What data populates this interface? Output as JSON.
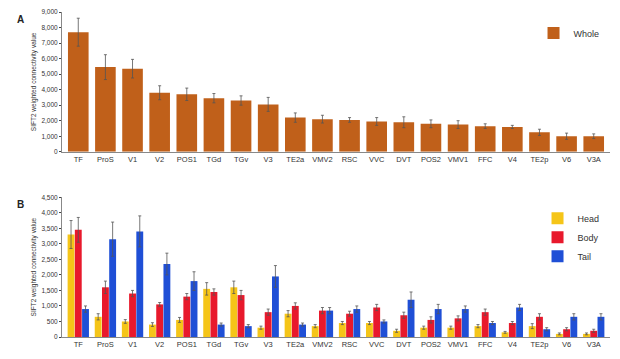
{
  "chart_data": [
    {
      "type": "bar",
      "title": "A",
      "y_label": "SIFT2 weighted connectivity value",
      "grid": false,
      "legend": "upper right",
      "categories": [
        "TF",
        "ProS",
        "V1",
        "V2",
        "POS1",
        "TGd",
        "TGv",
        "V3",
        "TE2a",
        "VMV2",
        "RSC",
        "VVC",
        "DVT",
        "POS2",
        "VMV1",
        "FFC",
        "V4",
        "TE2p",
        "V6",
        "V3A"
      ],
      "ylim": [
        0,
        9000
      ],
      "yticks": [
        0,
        {
          "value": 1000,
          "label": "1,000"
        },
        {
          "value": 2000,
          "label": "2,000"
        },
        {
          "value": 3000,
          "label": "3,000"
        },
        {
          "value": 4000,
          "label": "4,000"
        },
        {
          "value": 5000,
          "label": "5,000"
        },
        {
          "value": 6000,
          "label": "6,000"
        },
        {
          "value": 7000,
          "label": "7,000"
        },
        {
          "value": 8000,
          "label": "8,000"
        },
        {
          "value": 9000,
          "label": "9,000"
        }
      ],
      "series": [
        {
          "name": "Whole",
          "color": "#c0601a",
          "values": [
            7700,
            5450,
            5350,
            3800,
            3700,
            3450,
            3300,
            3050,
            2200,
            2100,
            2050,
            1950,
            1900,
            1800,
            1750,
            1650,
            1600,
            1250,
            1000,
            1000
          ],
          "errors": [
            900,
            800,
            600,
            450,
            400,
            300,
            300,
            450,
            300,
            250,
            150,
            250,
            350,
            250,
            250,
            150,
            100,
            200,
            200,
            150
          ]
        }
      ]
    },
    {
      "type": "bar",
      "title": "B",
      "y_label": "SIFT2 weighted connectivity value",
      "grid": false,
      "legend": "upper right",
      "categories": [
        "TF",
        "ProS",
        "V1",
        "V2",
        "POS1",
        "TGd",
        "TGv",
        "V3",
        "TE2a",
        "VMV2",
        "RSC",
        "VVC",
        "DVT",
        "POS2",
        "VMV1",
        "FFC",
        "V4",
        "TE2p",
        "V6",
        "V3A"
      ],
      "ylim": [
        0,
        4500
      ],
      "yticks": [
        0,
        500,
        {
          "value": 1000,
          "label": "1,000"
        },
        {
          "value": 1500,
          "label": "1,500"
        },
        {
          "value": 2000,
          "label": "2,000"
        },
        {
          "value": 2500,
          "label": "2,500"
        },
        {
          "value": 3000,
          "label": "3,000"
        },
        {
          "value": 3500,
          "label": "3,500"
        },
        {
          "value": 4000,
          "label": "4,000"
        },
        {
          "value": 4500,
          "label": "4,500"
        }
      ],
      "series": [
        {
          "name": "Head",
          "color": "#f5c518",
          "values": [
            3300,
            650,
            500,
            400,
            550,
            1550,
            1600,
            300,
            750,
            350,
            450,
            450,
            200,
            300,
            300,
            350,
            150,
            350,
            100,
            100
          ],
          "errors": [
            450,
            100,
            60,
            60,
            80,
            200,
            200,
            50,
            100,
            50,
            50,
            50,
            50,
            50,
            50,
            50,
            30,
            80,
            30,
            30
          ]
        },
        {
          "name": "Body",
          "color": "#e8192c",
          "values": [
            3450,
            1600,
            1400,
            1050,
            1300,
            1450,
            1350,
            800,
            1000,
            850,
            750,
            950,
            700,
            550,
            600,
            800,
            450,
            650,
            250,
            200
          ],
          "errors": [
            400,
            200,
            100,
            60,
            100,
            100,
            150,
            100,
            100,
            100,
            80,
            100,
            100,
            100,
            80,
            100,
            50,
            100,
            50,
            50
          ]
        },
        {
          "name": "Tail",
          "color": "#1f4fd6",
          "values": [
            900,
            3150,
            3400,
            2350,
            1800,
            400,
            350,
            1950,
            400,
            850,
            900,
            500,
            1200,
            900,
            900,
            450,
            950,
            250,
            650,
            650
          ],
          "errors": [
            100,
            550,
            500,
            350,
            300,
            50,
            50,
            350,
            50,
            100,
            100,
            50,
            250,
            150,
            100,
            50,
            100,
            50,
            100,
            100
          ]
        }
      ]
    }
  ]
}
